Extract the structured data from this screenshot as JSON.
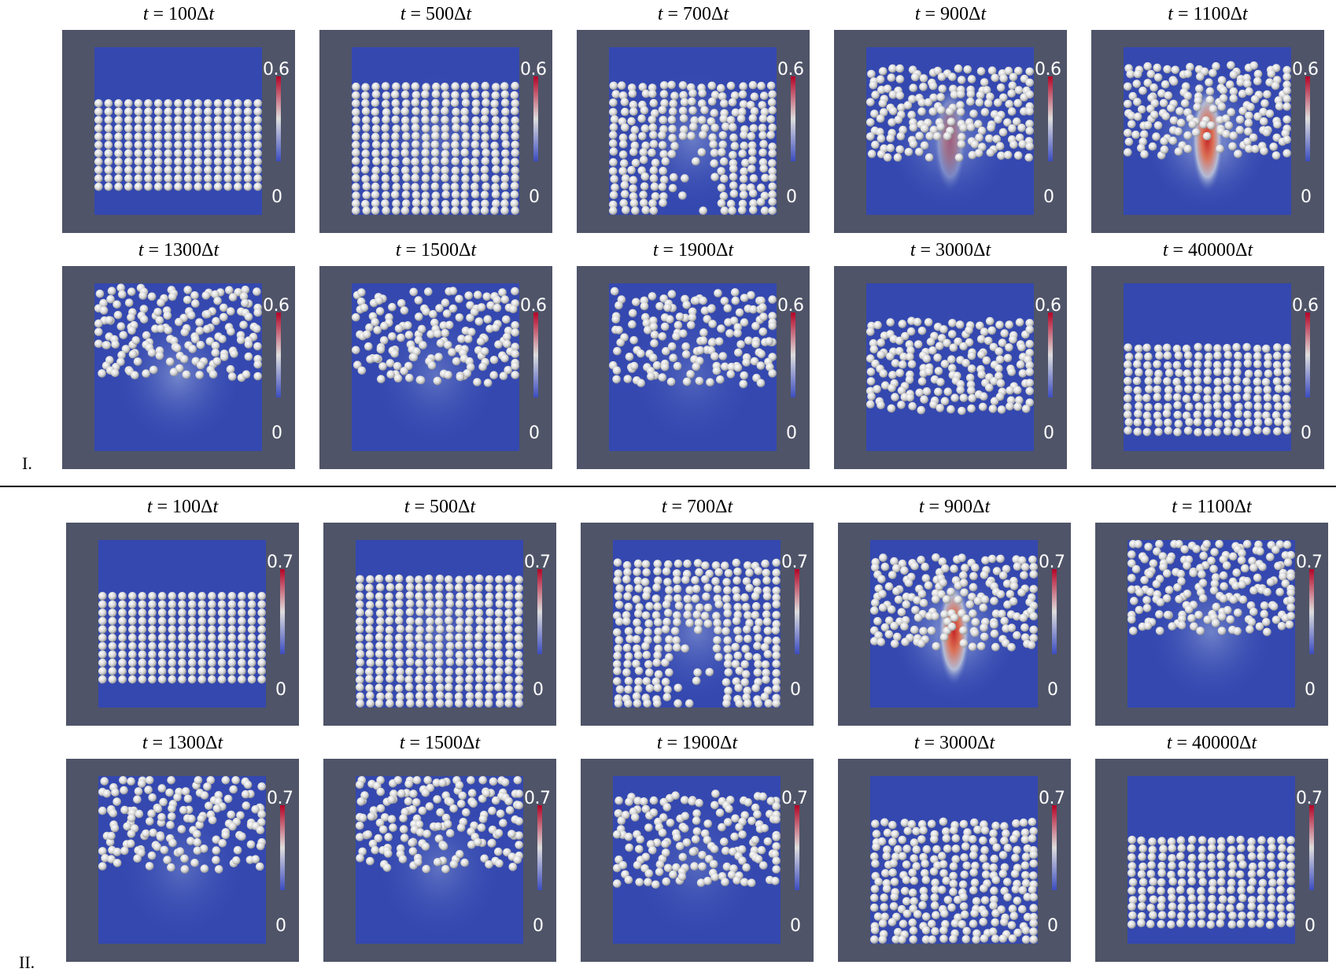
{
  "groups": [
    {
      "label": "I.",
      "colorbar": {
        "max": "0.6",
        "min": "0"
      },
      "rows": [
        [
          {
            "t": "100",
            "fill_level": 0.31,
            "plume": 0.0,
            "order": 1.0
          },
          {
            "t": "500",
            "fill_level": 0.21,
            "plume": 0.05,
            "order": 0.9
          },
          {
            "t": "700",
            "fill_level": 0.21,
            "plume": 0.25,
            "order": 0.75
          },
          {
            "t": "900",
            "fill_level": 0.12,
            "plume": 0.45,
            "order": 0.55
          },
          {
            "t": "1100",
            "fill_level": 0.1,
            "plume": 0.95,
            "order": 0.45
          }
        ],
        [
          {
            "t": "1300",
            "fill_level": 0.02,
            "plume": 0.35,
            "order": 0.3
          },
          {
            "t": "1500",
            "fill_level": 0.05,
            "plume": 0.15,
            "order": 0.25
          },
          {
            "t": "1900",
            "fill_level": 0.05,
            "plume": 0.05,
            "order": 0.25
          },
          {
            "t": "3000",
            "fill_level": 0.22,
            "plume": 0.0,
            "order": 0.5
          },
          {
            "t": "40000",
            "fill_level": 0.36,
            "plume": 0.0,
            "order": 0.85
          }
        ]
      ]
    },
    {
      "label": "II.",
      "colorbar": {
        "max": "0.7",
        "min": "0"
      },
      "rows": [
        [
          {
            "t": "100",
            "fill_level": 0.31,
            "plume": 0.0,
            "order": 1.0
          },
          {
            "t": "500",
            "fill_level": 0.21,
            "plume": 0.05,
            "order": 0.9
          },
          {
            "t": "700",
            "fill_level": 0.12,
            "plume": 0.25,
            "order": 0.75
          },
          {
            "t": "900",
            "fill_level": 0.1,
            "plume": 0.95,
            "order": 0.5
          },
          {
            "t": "1100",
            "fill_level": 0.0,
            "plume": 0.3,
            "order": 0.35
          }
        ],
        [
          {
            "t": "1300",
            "fill_level": 0.0,
            "plume": 0.1,
            "order": 0.2
          },
          {
            "t": "1500",
            "fill_level": 0.0,
            "plume": 0.15,
            "order": 0.2
          },
          {
            "t": "1900",
            "fill_level": 0.1,
            "plume": 0.05,
            "order": 0.3
          },
          {
            "t": "3000",
            "fill_level": 0.26,
            "plume": 0.0,
            "order": 0.65
          },
          {
            "t": "40000",
            "fill_level": 0.36,
            "plume": 0.0,
            "order": 0.85
          }
        ]
      ]
    }
  ],
  "time_prefix": "t = ",
  "time_suffix": "Δt"
}
